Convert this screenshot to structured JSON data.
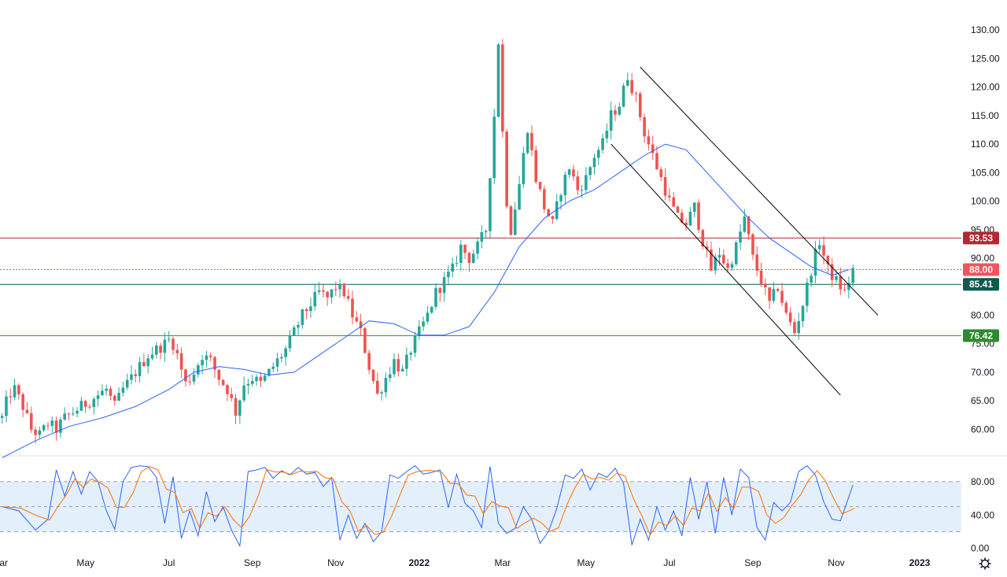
{
  "chart_data": {
    "type": "candlestick",
    "main_panel": {
      "y_ticks": [
        "130.00",
        "125.00",
        "120.00",
        "115.00",
        "110.00",
        "105.00",
        "100.00",
        "95.00",
        "90.00",
        "85.00",
        "80.00",
        "75.00",
        "70.00",
        "65.00",
        "60.00"
      ],
      "y_tick_values": [
        130,
        125,
        120,
        115,
        110,
        105,
        100,
        95,
        90,
        85,
        80,
        75,
        70,
        65,
        60
      ],
      "ylim": [
        55.5,
        132.5
      ],
      "x_ticks": [
        "ar",
        "May",
        "Jul",
        "Sep",
        "Nov",
        "2022",
        "Mar",
        "May",
        "Jul",
        "Sep",
        "Nov",
        "2023"
      ],
      "x_tick_values": [
        0.0,
        2.0,
        4.0,
        6.0,
        8.0,
        10.0,
        12.0,
        14.0,
        16.0,
        18.0,
        20.0,
        22.0
      ],
      "xlim": [
        -0.05,
        23.0
      ],
      "price_series": [
        [
          0,
          62
        ],
        [
          0.15,
          66
        ],
        [
          0.3,
          67
        ],
        [
          0.5,
          64
        ],
        [
          0.7,
          60
        ],
        [
          0.9,
          59
        ],
        [
          1.1,
          61
        ],
        [
          1.3,
          60
        ],
        [
          1.5,
          62
        ],
        [
          1.7,
          63
        ],
        [
          1.9,
          64
        ],
        [
          2.1,
          65
        ],
        [
          2.3,
          66
        ],
        [
          2.5,
          67
        ],
        [
          2.7,
          64
        ],
        [
          2.9,
          67
        ],
        [
          3.1,
          69
        ],
        [
          3.3,
          71
        ],
        [
          3.5,
          73
        ],
        [
          3.7,
          74
        ],
        [
          3.9,
          75
        ],
        [
          4.05,
          76
        ],
        [
          4.2,
          73
        ],
        [
          4.4,
          68
        ],
        [
          4.6,
          70
        ],
        [
          4.8,
          73
        ],
        [
          5.0,
          72
        ],
        [
          5.2,
          69
        ],
        [
          5.4,
          67
        ],
        [
          5.6,
          63
        ],
        [
          5.8,
          68
        ],
        [
          6.0,
          69
        ],
        [
          6.2,
          68
        ],
        [
          6.4,
          70
        ],
        [
          6.6,
          72
        ],
        [
          6.8,
          74
        ],
        [
          7.0,
          77
        ],
        [
          7.2,
          80
        ],
        [
          7.4,
          82
        ],
        [
          7.6,
          84
        ],
        [
          7.8,
          83
        ],
        [
          8.0,
          85
        ],
        [
          8.2,
          84
        ],
        [
          8.4,
          80
        ],
        [
          8.6,
          77
        ],
        [
          8.8,
          71
        ],
        [
          9.0,
          66
        ],
        [
          9.2,
          69
        ],
        [
          9.4,
          72
        ],
        [
          9.6,
          70
        ],
        [
          9.8,
          74
        ],
        [
          10.0,
          77
        ],
        [
          10.2,
          80
        ],
        [
          10.4,
          84
        ],
        [
          10.6,
          86
        ],
        [
          10.8,
          88
        ],
        [
          11.0,
          92
        ],
        [
          11.2,
          90
        ],
        [
          11.4,
          92
        ],
        [
          11.6,
          95
        ],
        [
          11.8,
          115
        ],
        [
          11.9,
          128
        ],
        [
          12.0,
          112
        ],
        [
          12.1,
          100
        ],
        [
          12.2,
          95
        ],
        [
          12.4,
          103
        ],
        [
          12.6,
          113
        ],
        [
          12.8,
          104
        ],
        [
          13.0,
          99
        ],
        [
          13.2,
          96
        ],
        [
          13.4,
          102
        ],
        [
          13.6,
          106
        ],
        [
          13.8,
          102
        ],
        [
          14.0,
          104
        ],
        [
          14.2,
          108
        ],
        [
          14.4,
          110
        ],
        [
          14.6,
          115
        ],
        [
          14.8,
          117
        ],
        [
          15.0,
          122
        ],
        [
          15.2,
          118
        ],
        [
          15.4,
          112
        ],
        [
          15.6,
          108
        ],
        [
          15.8,
          104
        ],
        [
          16.0,
          100
        ],
        [
          16.2,
          97
        ],
        [
          16.4,
          96
        ],
        [
          16.6,
          99
        ],
        [
          16.8,
          93
        ],
        [
          17.0,
          88
        ],
        [
          17.2,
          91
        ],
        [
          17.4,
          88
        ],
        [
          17.6,
          92
        ],
        [
          17.8,
          97
        ],
        [
          18.0,
          90
        ],
        [
          18.2,
          86
        ],
        [
          18.4,
          82
        ],
        [
          18.6,
          85
        ],
        [
          18.8,
          80
        ],
        [
          19.0,
          77
        ],
        [
          19.2,
          82
        ],
        [
          19.4,
          88
        ],
        [
          19.6,
          93
        ],
        [
          19.8,
          88
        ],
        [
          20.0,
          86
        ],
        [
          20.2,
          84
        ],
        [
          20.4,
          88
        ]
      ],
      "ma_series": [
        [
          0,
          55
        ],
        [
          0.8,
          58
        ],
        [
          1.6,
          60.5
        ],
        [
          2.4,
          62
        ],
        [
          3.2,
          64
        ],
        [
          4.0,
          67
        ],
        [
          4.6,
          70
        ],
        [
          5.2,
          71
        ],
        [
          5.8,
          70.5
        ],
        [
          6.4,
          69.5
        ],
        [
          7.0,
          70
        ],
        [
          7.6,
          73
        ],
        [
          8.2,
          76
        ],
        [
          8.8,
          79
        ],
        [
          9.4,
          78.5
        ],
        [
          10.0,
          76.5
        ],
        [
          10.6,
          76.5
        ],
        [
          11.2,
          78
        ],
        [
          11.8,
          84
        ],
        [
          12.4,
          92
        ],
        [
          13.0,
          97
        ],
        [
          13.6,
          100
        ],
        [
          14.2,
          102
        ],
        [
          14.8,
          105
        ],
        [
          15.4,
          108
        ],
        [
          15.9,
          110
        ],
        [
          16.4,
          109
        ],
        [
          16.9,
          105
        ],
        [
          17.4,
          101
        ],
        [
          17.9,
          97
        ],
        [
          18.4,
          93.5
        ],
        [
          18.9,
          91
        ],
        [
          19.4,
          88.5
        ],
        [
          19.9,
          87
        ],
        [
          20.3,
          88
        ]
      ],
      "horizontal_levels": [
        {
          "value": 93.53,
          "label": "93.53",
          "color": "#b22833",
          "style": "solid"
        },
        {
          "value": 88.0,
          "label": "88.00",
          "color": "#f7525f",
          "style": "dotted"
        },
        {
          "value": 85.41,
          "label": "85.41",
          "color": "#0d5a4e",
          "style": "solid"
        },
        {
          "value": 76.42,
          "label": "76.42",
          "color": "#2f8a2f",
          "style": "solid"
        }
      ],
      "channel_lines": [
        {
          "x1": 15.3,
          "y1": 123.5,
          "x2": 21.0,
          "y2": 80.0
        },
        {
          "x1": 14.6,
          "y1": 110.0,
          "x2": 20.1,
          "y2": 66.0
        }
      ],
      "colors": {
        "up": "#26a69a",
        "down": "#ef5350",
        "ma": "#2962ff",
        "channel": "#000000"
      }
    },
    "oscillator_panel": {
      "y_ticks": [
        "80.00",
        "40.00",
        "0.00"
      ],
      "y_tick_values": [
        80,
        40,
        0
      ],
      "ylim": [
        -5,
        110
      ],
      "bands": {
        "upper": 80,
        "middle": 50,
        "lower": 20,
        "fill": "#e3f0fb"
      },
      "k_series": [
        [
          0,
          50
        ],
        [
          0.4,
          45
        ],
        [
          0.8,
          22
        ],
        [
          1.1,
          35
        ],
        [
          1.3,
          94
        ],
        [
          1.5,
          63
        ],
        [
          1.7,
          92
        ],
        [
          1.9,
          65
        ],
        [
          2.1,
          92
        ],
        [
          2.3,
          80
        ],
        [
          2.5,
          45
        ],
        [
          2.7,
          23
        ],
        [
          2.9,
          80
        ],
        [
          3.1,
          97
        ],
        [
          3.3,
          99
        ],
        [
          3.5,
          98
        ],
        [
          3.7,
          85
        ],
        [
          3.9,
          30
        ],
        [
          4.1,
          86
        ],
        [
          4.3,
          12
        ],
        [
          4.5,
          45
        ],
        [
          4.7,
          15
        ],
        [
          4.9,
          68
        ],
        [
          5.1,
          32
        ],
        [
          5.3,
          50
        ],
        [
          5.5,
          22
        ],
        [
          5.7,
          3
        ],
        [
          5.9,
          92
        ],
        [
          6.1,
          94
        ],
        [
          6.3,
          97
        ],
        [
          6.5,
          84
        ],
        [
          6.7,
          93
        ],
        [
          6.9,
          88
        ],
        [
          7.1,
          97
        ],
        [
          7.3,
          89
        ],
        [
          7.5,
          91
        ],
        [
          7.7,
          74
        ],
        [
          7.9,
          85
        ],
        [
          8.1,
          10
        ],
        [
          8.3,
          40
        ],
        [
          8.5,
          12
        ],
        [
          8.7,
          30
        ],
        [
          8.9,
          8
        ],
        [
          9.1,
          20
        ],
        [
          9.3,
          88
        ],
        [
          9.5,
          84
        ],
        [
          9.7,
          92
        ],
        [
          9.9,
          99
        ],
        [
          10.1,
          89
        ],
        [
          10.3,
          91
        ],
        [
          10.5,
          94
        ],
        [
          10.7,
          49
        ],
        [
          10.9,
          89
        ],
        [
          11.1,
          54
        ],
        [
          11.3,
          45
        ],
        [
          11.5,
          25
        ],
        [
          11.7,
          98
        ],
        [
          11.9,
          30
        ],
        [
          12.1,
          18
        ],
        [
          12.3,
          24
        ],
        [
          12.5,
          50
        ],
        [
          12.7,
          35
        ],
        [
          12.9,
          6
        ],
        [
          13.1,
          20
        ],
        [
          13.3,
          48
        ],
        [
          13.5,
          88
        ],
        [
          13.7,
          84
        ],
        [
          13.9,
          95
        ],
        [
          14.1,
          70
        ],
        [
          14.3,
          90
        ],
        [
          14.5,
          85
        ],
        [
          14.7,
          96
        ],
        [
          14.9,
          78
        ],
        [
          15.1,
          4
        ],
        [
          15.3,
          35
        ],
        [
          15.5,
          10
        ],
        [
          15.7,
          50
        ],
        [
          15.9,
          22
        ],
        [
          16.1,
          45
        ],
        [
          16.3,
          15
        ],
        [
          16.5,
          85
        ],
        [
          16.7,
          35
        ],
        [
          16.9,
          80
        ],
        [
          17.1,
          18
        ],
        [
          17.3,
          85
        ],
        [
          17.5,
          40
        ],
        [
          17.7,
          95
        ],
        [
          17.9,
          85
        ],
        [
          18.1,
          25
        ],
        [
          18.3,
          10
        ],
        [
          18.5,
          55
        ],
        [
          18.7,
          45
        ],
        [
          18.9,
          55
        ],
        [
          19.1,
          92
        ],
        [
          19.3,
          99
        ],
        [
          19.5,
          88
        ],
        [
          19.7,
          56
        ],
        [
          19.9,
          35
        ],
        [
          20.1,
          33
        ],
        [
          20.4,
          76
        ]
      ],
      "colors": {
        "k": "#2962ff",
        "d": "#ff6d00",
        "band_line": "#787b86"
      }
    }
  }
}
